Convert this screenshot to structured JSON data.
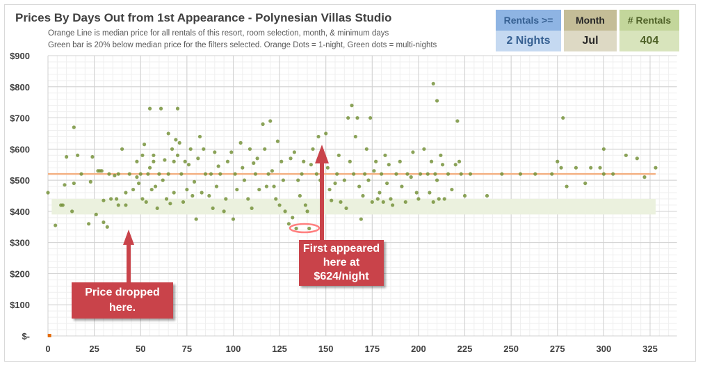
{
  "header": {
    "title": "Prices By Days Out from 1st Appearance - Polynesian Villas Studio",
    "subtitle_1": "Orange Line is median price for all rentals of this resort, room selection, month, & minimum days",
    "subtitle_2": "Green bar is 20% below median price for the filters selected. Orange Dots = 1-night, Green dots = multi-nights"
  },
  "filters": [
    {
      "label": "Rentals >=",
      "value": "2 Nights",
      "head_bg": "#8eb4e3",
      "val_bg": "#c5d9f1",
      "color": "#366092"
    },
    {
      "label": "Month",
      "value": "Jul",
      "head_bg": "#c4bd97",
      "val_bg": "#ddd9c4",
      "color": "#262626"
    },
    {
      "label": "# Rentals",
      "value": "404",
      "head_bg": "#c3d69b",
      "val_bg": "#d8e4bc",
      "color": "#4f6228"
    }
  ],
  "annotations": {
    "price_dropped": "Price dropped here.",
    "first_appeared": "First appeared here at $624/night"
  },
  "chart_data": {
    "type": "scatter",
    "title": "Prices By Days Out from 1st Appearance - Polynesian Villas Studio",
    "xlabel": "",
    "ylabel": "",
    "xlim": [
      0,
      335
    ],
    "ylim": [
      0,
      900
    ],
    "x_ticks": [
      0,
      25,
      50,
      75,
      100,
      125,
      150,
      175,
      200,
      225,
      250,
      275,
      300,
      325
    ],
    "y_ticks": [
      {
        "v": 0,
        "label": "$-"
      },
      {
        "v": 100,
        "label": "$100"
      },
      {
        "v": 200,
        "label": "$200"
      },
      {
        "v": 300,
        "label": "$300"
      },
      {
        "v": 400,
        "label": "$400"
      },
      {
        "v": 500,
        "label": "$500"
      },
      {
        "v": 600,
        "label": "$600"
      },
      {
        "v": 700,
        "label": "$700"
      },
      {
        "v": 800,
        "label": "$800"
      },
      {
        "v": 900,
        "label": "$900"
      }
    ],
    "grid": true,
    "median_price": 520,
    "median_range": [
      0,
      328
    ],
    "discount_band": {
      "low": 390,
      "high": 440,
      "range": [
        2,
        328
      ]
    },
    "colors": {
      "multi": "#77933c",
      "single": "#e46c0a",
      "median": "#f4b183",
      "band": "#ebf1de"
    },
    "series": [
      {
        "name": "1-night",
        "points": [
          [
            1,
            0
          ]
        ]
      },
      {
        "name": "multi-night",
        "points": [
          [
            0,
            460
          ],
          [
            4,
            355
          ],
          [
            7,
            420
          ],
          [
            8,
            420
          ],
          [
            9,
            485
          ],
          [
            10,
            575
          ],
          [
            13,
            400
          ],
          [
            14,
            490
          ],
          [
            14,
            670
          ],
          [
            16,
            580
          ],
          [
            18,
            520
          ],
          [
            22,
            360
          ],
          [
            23,
            495
          ],
          [
            24,
            575
          ],
          [
            26,
            390
          ],
          [
            27,
            530
          ],
          [
            28,
            530
          ],
          [
            29,
            530
          ],
          [
            30,
            435
          ],
          [
            30,
            365
          ],
          [
            32,
            350
          ],
          [
            33,
            520
          ],
          [
            34,
            440
          ],
          [
            36,
            515
          ],
          [
            37,
            440
          ],
          [
            38,
            520
          ],
          [
            38,
            420
          ],
          [
            40,
            600
          ],
          [
            42,
            420
          ],
          [
            42,
            460
          ],
          [
            44,
            520
          ],
          [
            46,
            470
          ],
          [
            48,
            560
          ],
          [
            48,
            510
          ],
          [
            49,
            490
          ],
          [
            50,
            520
          ],
          [
            51,
            440
          ],
          [
            51,
            580
          ],
          [
            52,
            615
          ],
          [
            53,
            430
          ],
          [
            54,
            520
          ],
          [
            55,
            730
          ],
          [
            55,
            540
          ],
          [
            56,
            470
          ],
          [
            57,
            560
          ],
          [
            57,
            580
          ],
          [
            58,
            480
          ],
          [
            59,
            410
          ],
          [
            60,
            520
          ],
          [
            61,
            730
          ],
          [
            62,
            500
          ],
          [
            63,
            565
          ],
          [
            64,
            440
          ],
          [
            65,
            650
          ],
          [
            65,
            520
          ],
          [
            66,
            425
          ],
          [
            67,
            600
          ],
          [
            68,
            560
          ],
          [
            68,
            460
          ],
          [
            69,
            630
          ],
          [
            70,
            730
          ],
          [
            70,
            580
          ],
          [
            71,
            620
          ],
          [
            72,
            520
          ],
          [
            73,
            430
          ],
          [
            74,
            560
          ],
          [
            75,
            470
          ],
          [
            76,
            550
          ],
          [
            77,
            600
          ],
          [
            78,
            450
          ],
          [
            79,
            495
          ],
          [
            80,
            375
          ],
          [
            81,
            570
          ],
          [
            82,
            640
          ],
          [
            83,
            460
          ],
          [
            84,
            600
          ],
          [
            85,
            520
          ],
          [
            87,
            450
          ],
          [
            88,
            520
          ],
          [
            89,
            410
          ],
          [
            90,
            590
          ],
          [
            91,
            480
          ],
          [
            92,
            545
          ],
          [
            93,
            520
          ],
          [
            95,
            400
          ],
          [
            96,
            440
          ],
          [
            97,
            560
          ],
          [
            99,
            590
          ],
          [
            100,
            375
          ],
          [
            101,
            520
          ],
          [
            102,
            470
          ],
          [
            104,
            620
          ],
          [
            105,
            540
          ],
          [
            106,
            500
          ],
          [
            108,
            440
          ],
          [
            109,
            600
          ],
          [
            110,
            410
          ],
          [
            111,
            555
          ],
          [
            112,
            520
          ],
          [
            113,
            570
          ],
          [
            114,
            470
          ],
          [
            116,
            680
          ],
          [
            117,
            600
          ],
          [
            118,
            480
          ],
          [
            119,
            520
          ],
          [
            120,
            690
          ],
          [
            121,
            530
          ],
          [
            122,
            480
          ],
          [
            123,
            440
          ],
          [
            124,
            625
          ],
          [
            125,
            420
          ],
          [
            126,
            560
          ],
          [
            127,
            500
          ],
          [
            128,
            400
          ],
          [
            130,
            360
          ],
          [
            131,
            570
          ],
          [
            132,
            380
          ],
          [
            133,
            590
          ],
          [
            134,
            345
          ],
          [
            135,
            500
          ],
          [
            136,
            450
          ],
          [
            137,
            520
          ],
          [
            138,
            560
          ],
          [
            139,
            420
          ],
          [
            140,
            400
          ],
          [
            141,
            345
          ],
          [
            142,
            550
          ],
          [
            143,
            600
          ],
          [
            145,
            520
          ],
          [
            146,
            640
          ],
          [
            147,
            500
          ],
          [
            148,
            430
          ],
          [
            148,
            465
          ],
          [
            149,
            560
          ],
          [
            150,
            650
          ],
          [
            151,
            540
          ],
          [
            152,
            470
          ],
          [
            153,
            435
          ],
          [
            155,
            490
          ],
          [
            156,
            520
          ],
          [
            157,
            580
          ],
          [
            158,
            430
          ],
          [
            160,
            500
          ],
          [
            161,
            410
          ],
          [
            162,
            700
          ],
          [
            163,
            560
          ],
          [
            164,
            740
          ],
          [
            165,
            520
          ],
          [
            166,
            640
          ],
          [
            167,
            700
          ],
          [
            168,
            480
          ],
          [
            169,
            375
          ],
          [
            170,
            450
          ],
          [
            171,
            520
          ],
          [
            172,
            600
          ],
          [
            173,
            500
          ],
          [
            174,
            700
          ],
          [
            175,
            430
          ],
          [
            176,
            530
          ],
          [
            177,
            560
          ],
          [
            178,
            440
          ],
          [
            179,
            460
          ],
          [
            180,
            520
          ],
          [
            181,
            430
          ],
          [
            182,
            580
          ],
          [
            183,
            490
          ],
          [
            184,
            550
          ],
          [
            185,
            440
          ],
          [
            186,
            420
          ],
          [
            188,
            520
          ],
          [
            190,
            560
          ],
          [
            191,
            480
          ],
          [
            193,
            430
          ],
          [
            194,
            520
          ],
          [
            196,
            510
          ],
          [
            197,
            590
          ],
          [
            199,
            460
          ],
          [
            200,
            440
          ],
          [
            201,
            520
          ],
          [
            203,
            600
          ],
          [
            205,
            520
          ],
          [
            206,
            460
          ],
          [
            207,
            560
          ],
          [
            208,
            810
          ],
          [
            208,
            430
          ],
          [
            209,
            520
          ],
          [
            210,
            755
          ],
          [
            210,
            500
          ],
          [
            211,
            440
          ],
          [
            212,
            580
          ],
          [
            213,
            550
          ],
          [
            214,
            440
          ],
          [
            216,
            520
          ],
          [
            218,
            470
          ],
          [
            220,
            550
          ],
          [
            221,
            690
          ],
          [
            222,
            560
          ],
          [
            223,
            520
          ],
          [
            225,
            450
          ],
          [
            228,
            520
          ],
          [
            237,
            450
          ],
          [
            245,
            520
          ],
          [
            255,
            520
          ],
          [
            263,
            520
          ],
          [
            272,
            520
          ],
          [
            275,
            560
          ],
          [
            277,
            540
          ],
          [
            278,
            700
          ],
          [
            280,
            480
          ],
          [
            285,
            540
          ],
          [
            290,
            490
          ],
          [
            293,
            540
          ],
          [
            298,
            540
          ],
          [
            300,
            600
          ],
          [
            300,
            520
          ],
          [
            305,
            520
          ],
          [
            312,
            580
          ],
          [
            318,
            570
          ],
          [
            322,
            510
          ],
          [
            328,
            540
          ]
        ]
      }
    ]
  }
}
